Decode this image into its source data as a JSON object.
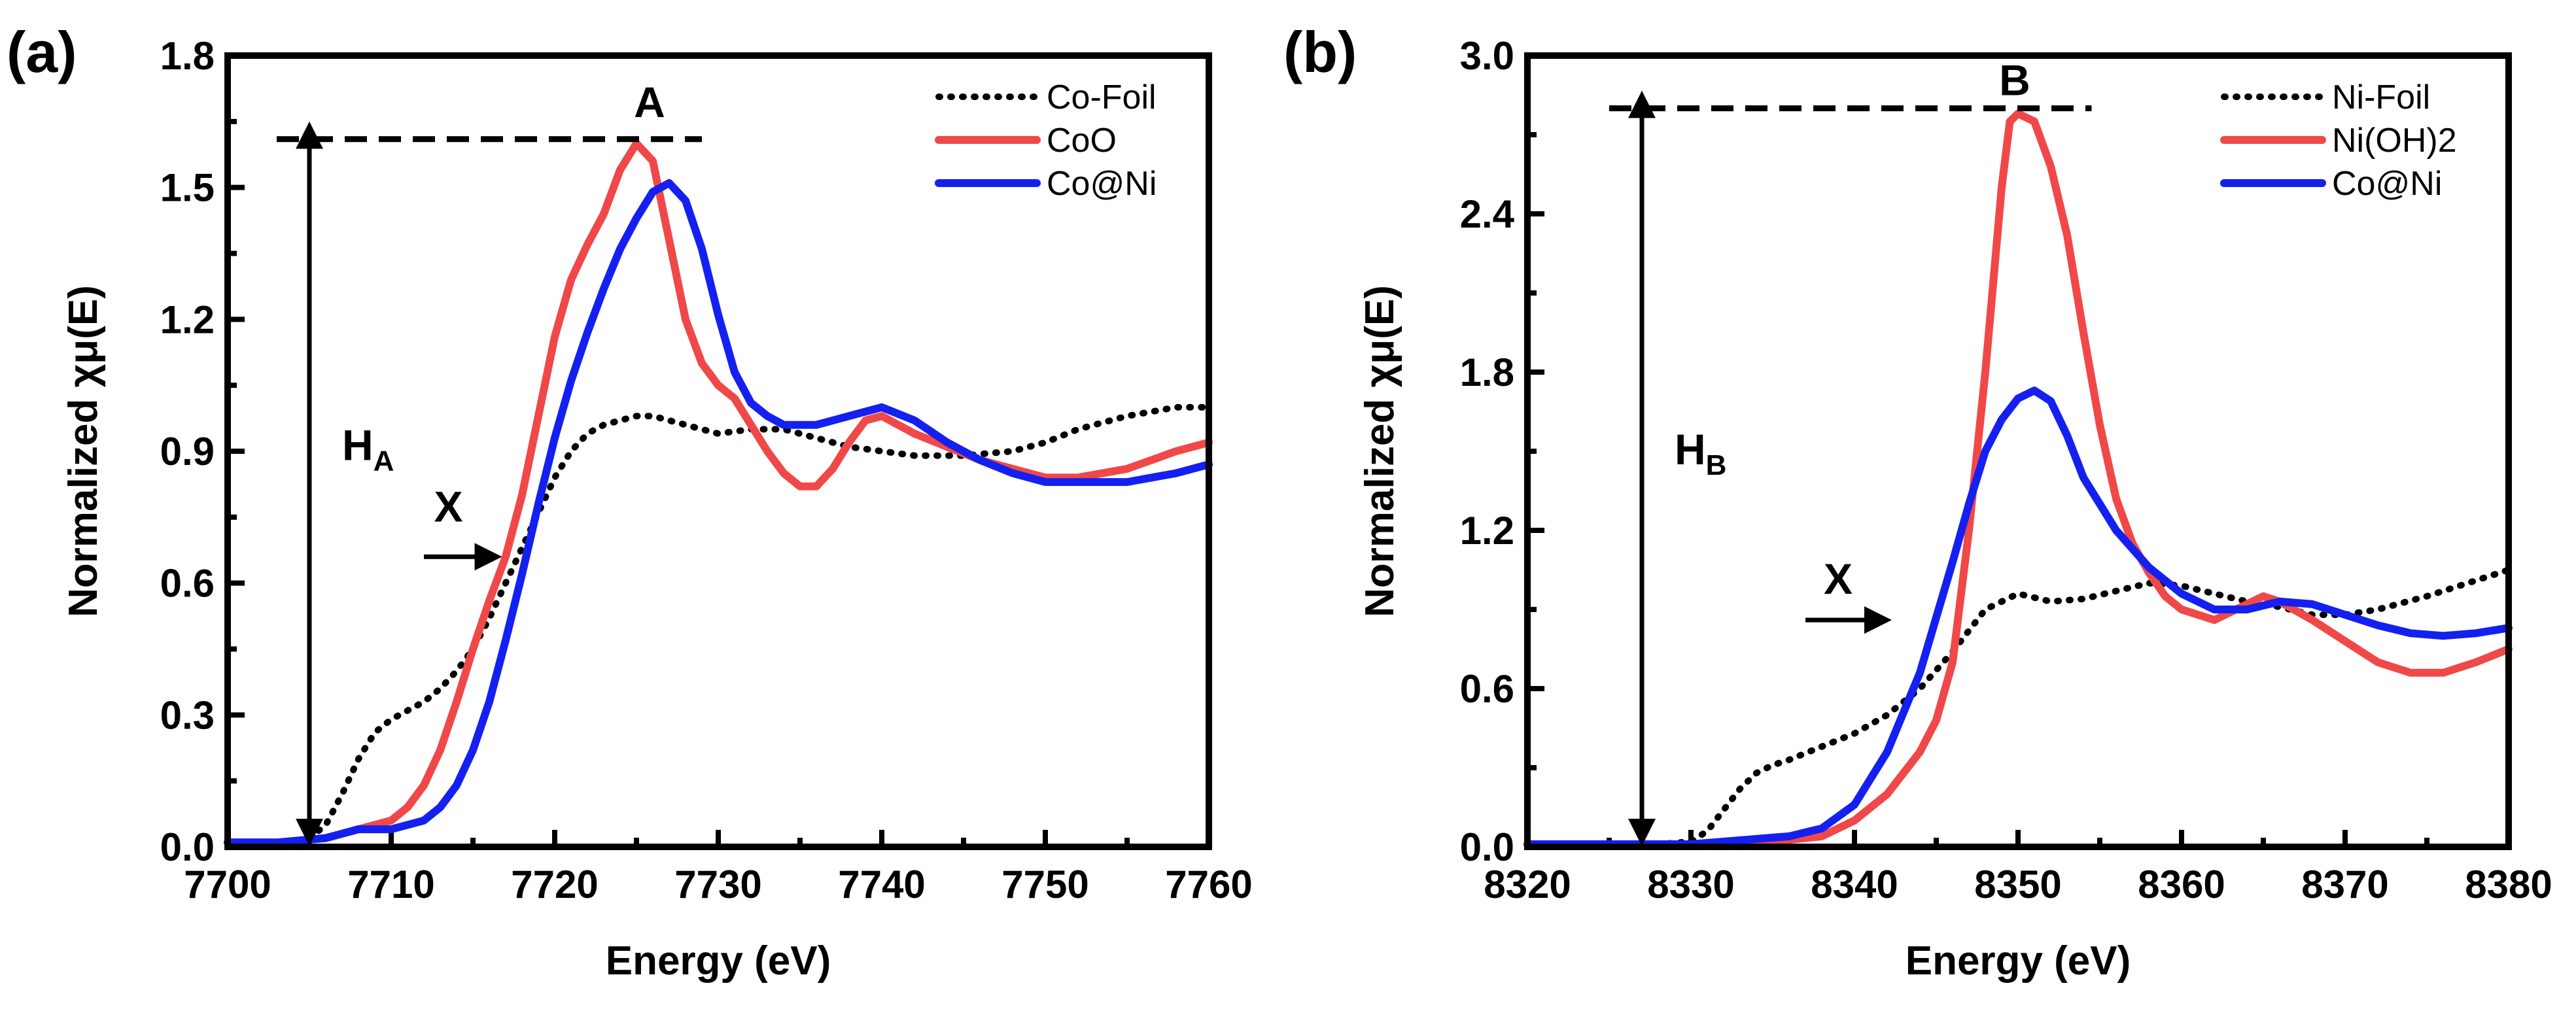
{
  "chart_data": [
    {
      "panel_tag": "(a)",
      "type": "line",
      "xlabel": "Energy (eV)",
      "ylabel": "Normalized χμ(E)",
      "xlim": [
        7700,
        7760
      ],
      "ylim": [
        0,
        1.8
      ],
      "xticks": [
        7700,
        7710,
        7720,
        7730,
        7740,
        7750,
        7760
      ],
      "xtick_labels": [
        "7700",
        "7710",
        "7720",
        "7730",
        "7740",
        "7750",
        "7760"
      ],
      "yticks": [
        0,
        0.3,
        0.6,
        0.9,
        1.2,
        1.5,
        1.8
      ],
      "ytick_labels": [
        "0.0",
        "0.3",
        "0.6",
        "0.9",
        "1.2",
        "1.5",
        "1.8"
      ],
      "legend_position": "top-right",
      "series": [
        {
          "name": "Co-Foil",
          "color": "#000000",
          "style": "dotted",
          "x": [
            7700,
            7702,
            7704,
            7705,
            7706,
            7707,
            7708,
            7709,
            7710,
            7711,
            7712,
            7713,
            7714,
            7715,
            7716,
            7717,
            7718,
            7719,
            7720,
            7721,
            7722,
            7723,
            7724,
            7725,
            7726,
            7728,
            7730,
            7732,
            7734,
            7736,
            7738,
            7740,
            7742,
            7745,
            7748,
            7750,
            7752,
            7755,
            7758,
            7760
          ],
          "y": [
            0.01,
            0.01,
            0.01,
            0.02,
            0.05,
            0.12,
            0.2,
            0.26,
            0.29,
            0.31,
            0.33,
            0.36,
            0.4,
            0.45,
            0.52,
            0.6,
            0.68,
            0.76,
            0.84,
            0.9,
            0.94,
            0.96,
            0.97,
            0.98,
            0.98,
            0.96,
            0.94,
            0.95,
            0.95,
            0.93,
            0.91,
            0.9,
            0.89,
            0.89,
            0.9,
            0.92,
            0.95,
            0.98,
            1.0,
            1.0
          ]
        },
        {
          "name": "CoO",
          "color": "#f04848",
          "style": "solid",
          "x": [
            7700,
            7703,
            7706,
            7708,
            7710,
            7711,
            7712,
            7713,
            7714,
            7715,
            7716,
            7717,
            7718,
            7719,
            7720,
            7721,
            7722,
            7723,
            7724,
            7725,
            7726,
            7727,
            7728,
            7729,
            7730,
            7731,
            7732,
            7733,
            7734,
            7735,
            7736,
            7737,
            7738,
            7739,
            7740,
            7742,
            7744,
            7746,
            7748,
            7750,
            7752,
            7755,
            7758,
            7760
          ],
          "y": [
            0.01,
            0.01,
            0.02,
            0.04,
            0.06,
            0.09,
            0.14,
            0.22,
            0.33,
            0.45,
            0.56,
            0.66,
            0.8,
            0.98,
            1.16,
            1.29,
            1.37,
            1.44,
            1.54,
            1.6,
            1.56,
            1.38,
            1.2,
            1.1,
            1.05,
            1.02,
            0.96,
            0.9,
            0.85,
            0.82,
            0.82,
            0.86,
            0.92,
            0.97,
            0.98,
            0.94,
            0.91,
            0.88,
            0.86,
            0.84,
            0.84,
            0.86,
            0.9,
            0.92
          ]
        },
        {
          "name": "Co@Ni",
          "color": "#1420f0",
          "style": "solid",
          "x": [
            7700,
            7703,
            7706,
            7708,
            7710,
            7711,
            7712,
            7713,
            7714,
            7715,
            7716,
            7717,
            7718,
            7719,
            7720,
            7721,
            7722,
            7723,
            7724,
            7725,
            7726,
            7727,
            7728,
            7729,
            7730,
            7731,
            7732,
            7733,
            7734,
            7736,
            7738,
            7740,
            7742,
            7744,
            7746,
            7748,
            7750,
            7752,
            7755,
            7758,
            7760
          ],
          "y": [
            0.01,
            0.01,
            0.02,
            0.04,
            0.04,
            0.05,
            0.06,
            0.09,
            0.14,
            0.22,
            0.33,
            0.47,
            0.62,
            0.78,
            0.93,
            1.06,
            1.17,
            1.27,
            1.36,
            1.43,
            1.49,
            1.51,
            1.47,
            1.36,
            1.21,
            1.08,
            1.01,
            0.98,
            0.96,
            0.96,
            0.98,
            1.0,
            0.97,
            0.92,
            0.88,
            0.85,
            0.83,
            0.83,
            0.83,
            0.85,
            0.87
          ]
        }
      ],
      "annotations": {
        "peak_label": "A",
        "height_label": "H",
        "height_subscript": "A",
        "edge_label": "X",
        "peak_line_y": 1.61,
        "peak_line_x": [
          7703,
          7729
        ],
        "height_arrow_x": 7705,
        "edge_arrow": {
          "x": [
            7712,
            7716.5
          ],
          "y": 0.66
        },
        "edge_label_pos": {
          "x": 7713.5,
          "y": 0.74
        },
        "peak_label_pos": {
          "x": 7725.8,
          "y": 1.66
        },
        "height_label_pos": {
          "x": 7707,
          "y": 0.88
        }
      }
    },
    {
      "panel_tag": "(b)",
      "type": "line",
      "xlabel": "Energy (eV)",
      "ylabel": "Normalized χμ(E)",
      "xlim": [
        8320,
        8380
      ],
      "ylim": [
        0,
        3.0
      ],
      "xticks": [
        8320,
        8330,
        8340,
        8350,
        8360,
        8370,
        8380
      ],
      "xtick_labels": [
        "8320",
        "8330",
        "8340",
        "8350",
        "8360",
        "8370",
        "8380"
      ],
      "yticks": [
        0,
        0.6,
        1.2,
        1.8,
        2.4,
        3.0
      ],
      "ytick_labels": [
        "0.0",
        "0.6",
        "1.2",
        "1.8",
        "2.4",
        "3.0"
      ],
      "legend_position": "top-right",
      "series": [
        {
          "name": "Ni-Foil",
          "color": "#000000",
          "style": "dotted",
          "x": [
            8320,
            8325,
            8328,
            8330,
            8331,
            8332,
            8333,
            8334,
            8335,
            8336,
            8338,
            8340,
            8342,
            8344,
            8346,
            8348,
            8350,
            8352,
            8354,
            8356,
            8358,
            8360,
            8362,
            8364,
            8366,
            8368,
            8370,
            8372,
            8375,
            8378,
            8380
          ],
          "y": [
            0.01,
            0.01,
            0.01,
            0.02,
            0.06,
            0.14,
            0.22,
            0.28,
            0.31,
            0.33,
            0.38,
            0.43,
            0.5,
            0.6,
            0.74,
            0.9,
            0.96,
            0.93,
            0.94,
            0.97,
            1.0,
            0.99,
            0.96,
            0.93,
            0.91,
            0.88,
            0.88,
            0.9,
            0.95,
            1.01,
            1.05
          ]
        },
        {
          "name": "Ni(OH)2",
          "color": "#f04848",
          "style": "solid",
          "x": [
            8320,
            8330,
            8335,
            8338,
            8340,
            8342,
            8344,
            8345,
            8346,
            8347,
            8348,
            8349,
            8349.5,
            8350,
            8351,
            8352,
            8353,
            8354,
            8355,
            8356,
            8357,
            8358,
            8359,
            8360,
            8362,
            8364,
            8365,
            8366,
            8368,
            8370,
            8372,
            8374,
            8376,
            8378,
            8380
          ],
          "y": [
            0.01,
            0.01,
            0.02,
            0.04,
            0.1,
            0.2,
            0.36,
            0.48,
            0.7,
            1.2,
            1.8,
            2.5,
            2.75,
            2.78,
            2.75,
            2.58,
            2.32,
            1.95,
            1.6,
            1.32,
            1.15,
            1.04,
            0.95,
            0.9,
            0.86,
            0.92,
            0.95,
            0.93,
            0.86,
            0.78,
            0.7,
            0.66,
            0.66,
            0.7,
            0.75
          ]
        },
        {
          "name": "Co@Ni",
          "color": "#1420f0",
          "style": "solid",
          "x": [
            8320,
            8330,
            8334,
            8336,
            8338,
            8340,
            8342,
            8344,
            8346,
            8347,
            8348,
            8349,
            8350,
            8351,
            8352,
            8353,
            8354,
            8356,
            8358,
            8360,
            8362,
            8364,
            8366,
            8368,
            8370,
            8372,
            8374,
            8376,
            8378,
            8380
          ],
          "y": [
            0.01,
            0.01,
            0.03,
            0.04,
            0.07,
            0.16,
            0.36,
            0.66,
            1.08,
            1.3,
            1.5,
            1.62,
            1.7,
            1.73,
            1.69,
            1.56,
            1.4,
            1.2,
            1.06,
            0.96,
            0.9,
            0.9,
            0.93,
            0.92,
            0.88,
            0.84,
            0.81,
            0.8,
            0.81,
            0.83
          ]
        }
      ],
      "annotations": {
        "peak_label": "B",
        "height_label": "H",
        "height_subscript": "B",
        "edge_label": "X",
        "peak_line_y": 2.8,
        "peak_line_x": [
          8325,
          8354.5
        ],
        "height_arrow_x": 8327,
        "edge_arrow": {
          "x": [
            8337,
            8342
          ],
          "y": 0.86
        },
        "edge_label_pos": {
          "x": 8339,
          "y": 0.96
        },
        "peak_label_pos": {
          "x": 8349.8,
          "y": 2.85
        },
        "height_label_pos": {
          "x": 8329,
          "y": 1.45
        }
      }
    }
  ]
}
